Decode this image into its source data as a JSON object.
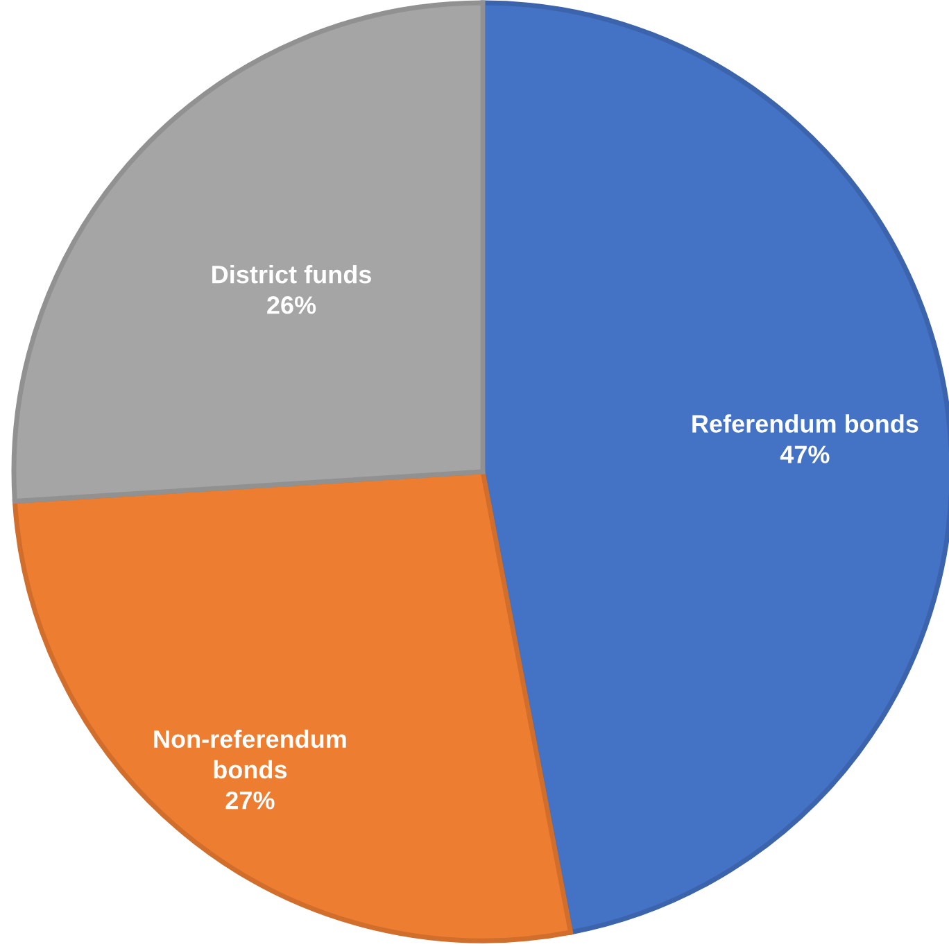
{
  "chart_data": {
    "type": "pie",
    "categories": [
      "Referendum bonds",
      "Non-referendum\nbonds",
      "District funds"
    ],
    "values": [
      47,
      27,
      26
    ],
    "value_labels": [
      "47%",
      "27%",
      "26%"
    ],
    "colors": [
      "#4472c4",
      "#ed7d31",
      "#a5a5a5"
    ]
  }
}
